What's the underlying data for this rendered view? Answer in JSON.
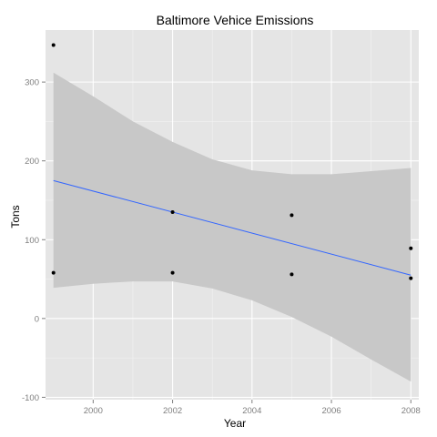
{
  "chart_data": {
    "type": "scatter",
    "title": "Baltimore Vehice Emissions",
    "xlabel": "Year",
    "ylabel": "Tons",
    "xlim": [
      1998.8,
      2008.2
    ],
    "ylim": [
      -103,
      366
    ],
    "x_ticks": [
      2000,
      2002,
      2004,
      2006,
      2008
    ],
    "y_ticks": [
      -100,
      0,
      100,
      200,
      300
    ],
    "grid": true,
    "legend": "none",
    "points": [
      {
        "x": 1999,
        "y": 347
      },
      {
        "x": 1999,
        "y": 58
      },
      {
        "x": 2002,
        "y": 135
      },
      {
        "x": 2002,
        "y": 58
      },
      {
        "x": 2005,
        "y": 131
      },
      {
        "x": 2005,
        "y": 56
      },
      {
        "x": 2008,
        "y": 89
      },
      {
        "x": 2008,
        "y": 51
      }
    ],
    "trend_line": {
      "method": "linear",
      "x": [
        1999,
        2008
      ],
      "y": [
        175,
        55
      ]
    },
    "confidence_band": {
      "x": [
        1999,
        2000,
        2001,
        2002,
        2003,
        2004,
        2005,
        2006,
        2007,
        2008
      ],
      "upper": [
        312,
        282,
        250,
        224,
        202,
        188,
        183,
        183,
        187,
        191
      ],
      "lower": [
        39,
        44,
        47,
        47,
        38,
        23,
        2,
        -23,
        -52,
        -80
      ]
    },
    "colors": {
      "panel_background": "#e5e5e5",
      "grid_major": "#ffffff",
      "grid_minor": "#f2f2f2",
      "band": "#c8c8c8",
      "line": "#3366ff",
      "point": "#000000"
    }
  }
}
